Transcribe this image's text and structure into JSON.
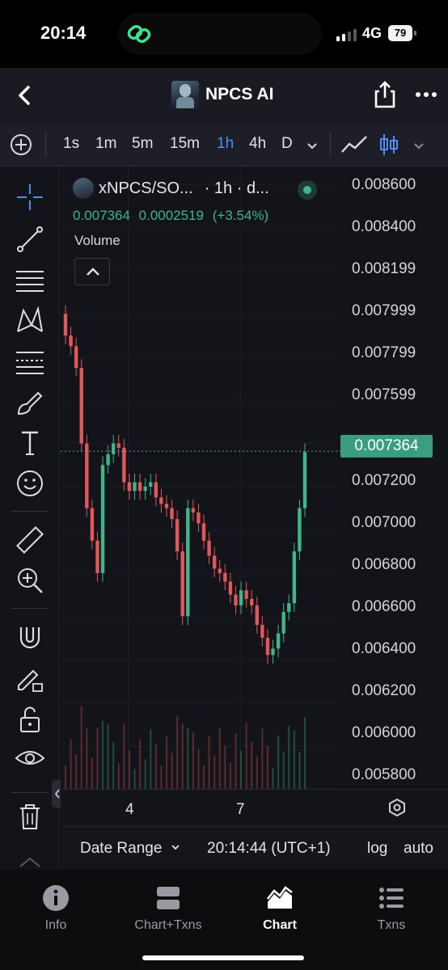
{
  "status_bar": {
    "time": "20:14",
    "network": "4G",
    "battery": "79"
  },
  "header": {
    "title": "NPCS AI",
    "back_icon": "chevron-left-icon",
    "share_icon": "share-icon",
    "more_icon": "more-horizontal-icon"
  },
  "toolbar": {
    "timeframes": [
      "1s",
      "1m",
      "5m",
      "15m",
      "1h",
      "4h",
      "D"
    ],
    "active_timeframe": "1h",
    "accent": "#4f8cff"
  },
  "drawing_tools": [
    "crosshair-icon",
    "trend-line-icon",
    "horizontal-lines-icon",
    "pattern-icon",
    "fib-icon",
    "brush-icon",
    "text-icon",
    "emoji-icon",
    "ruler-icon",
    "zoom-in-icon",
    "magnet-icon",
    "lock-drawing-icon",
    "unlock-icon",
    "eye-icon",
    "trash-icon"
  ],
  "legend": {
    "symbol": "xNPCS/SO...",
    "interval": "· 1h · d...",
    "price": "0.007364",
    "change": "0.0002519",
    "change_pct": "(+3.54%)",
    "volume_label": "Volume",
    "up_color": "#3fb58a",
    "down_color": "#e0575b"
  },
  "price_axis": [
    "0.008600",
    "0.008400",
    "0.008199",
    "0.007999",
    "0.007799",
    "0.007599",
    "0.007200",
    "0.007000",
    "0.006800",
    "0.006600",
    "0.006400",
    "0.006200",
    "0.006000",
    "0.005800"
  ],
  "current_price": "0.007364",
  "x_axis": [
    "4",
    "7"
  ],
  "footer": {
    "date_range": "Date Range",
    "time": "20:14:44 (UTC+1)",
    "log": "log",
    "auto": "auto"
  },
  "chart_data": {
    "type": "candlestick",
    "interval": "1h",
    "x_tick_labels": [
      "4",
      "7"
    ],
    "y_tick_labels": [
      "0.008600",
      "0.008400",
      "0.008199",
      "0.007999",
      "0.007799",
      "0.007599",
      "0.007200",
      "0.007000",
      "0.006800",
      "0.006600",
      "0.006400",
      "0.006200",
      "0.006000",
      "0.005800"
    ],
    "ylim": [
      0.0058,
      0.0086
    ],
    "last_price": 0.007364,
    "close_series": [
      0.0079,
      0.00785,
      0.00775,
      0.0074,
      0.0071,
      0.00695,
      0.0068,
      0.0073,
      0.00735,
      0.0074,
      0.00738,
      0.00722,
      0.00718,
      0.00722,
      0.00718,
      0.0072,
      0.00722,
      0.00715,
      0.00712,
      0.0071,
      0.00705,
      0.0069,
      0.0066,
      0.0071,
      0.00708,
      0.00703,
      0.00695,
      0.00688,
      0.00682,
      0.0068,
      0.00676,
      0.0067,
      0.00665,
      0.00672,
      0.00668,
      0.00665,
      0.00656,
      0.0065,
      0.00642,
      0.00645,
      0.00652,
      0.00662,
      0.00666,
      0.0069,
      0.0071,
      0.00736
    ],
    "grid": true
  },
  "tabbar": [
    {
      "label": "Info",
      "icon": "info-icon"
    },
    {
      "label": "Chart+Txns",
      "icon": "split-view-icon"
    },
    {
      "label": "Chart",
      "icon": "chart-area-icon",
      "active": true
    },
    {
      "label": "Txns",
      "icon": "list-icon"
    }
  ]
}
